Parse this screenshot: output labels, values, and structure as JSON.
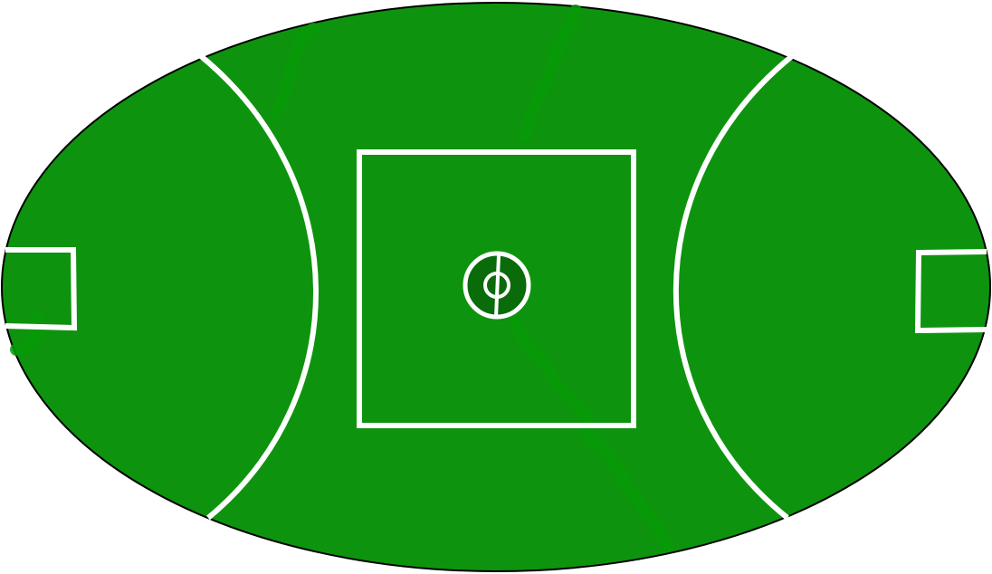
{
  "diagram": {
    "subject": "football-oval-field",
    "colors": {
      "grass": "#0e930e",
      "boundary": "#000000",
      "lines": "#ffffff",
      "center_fill": "#0a6b0a",
      "scuff_marks": "#069a06"
    }
  }
}
